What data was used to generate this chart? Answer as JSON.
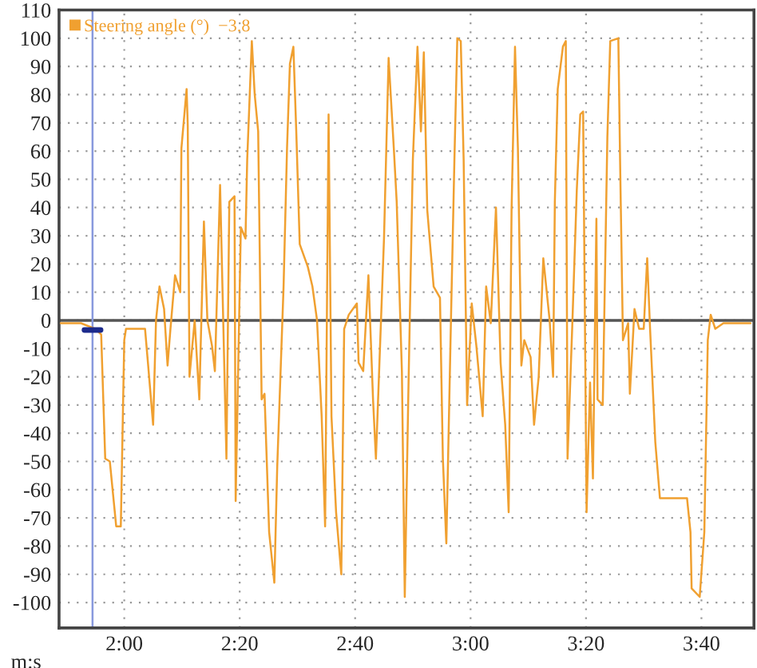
{
  "chart_data": {
    "type": "line",
    "xlabel": "m:s",
    "x": [
      109,
      112.5,
      115,
      116,
      116.7,
      117.5,
      118.6,
      119.4,
      120,
      120.3,
      123.6,
      124.1,
      125,
      125.5,
      126.1,
      126.9,
      127.5,
      128,
      128.8,
      129.7,
      129.9,
      130.8,
      131,
      131.3,
      132.2,
      133,
      133.8,
      134.4,
      135.2,
      135.7,
      136.6,
      137.7,
      138.2,
      139.1,
      139.3,
      140.2,
      141,
      141.3,
      142.1,
      142.6,
      143.2,
      143.8,
      144.3,
      145.1,
      146,
      146.5,
      147.6,
      148.2,
      148.7,
      149.3,
      149.8,
      150.4,
      151.8,
      152.6,
      153.4,
      154.2,
      154.8,
      155.4,
      155.9,
      156.7,
      157.6,
      158.1,
      158.9,
      160.3,
      160.6,
      161.4,
      162.3,
      163.1,
      163.6,
      165,
      165.8,
      166.7,
      167.2,
      168.1,
      168.6,
      169.2,
      170,
      170.8,
      171.4,
      171.9,
      172.5,
      173.6,
      174.7,
      175.2,
      175.8,
      176.6,
      177.2,
      177.7,
      178.3,
      178.8,
      179.4,
      180.2,
      181,
      182.1,
      182.7,
      183.5,
      184.4,
      185.2,
      186,
      186.6,
      187.1,
      187.7,
      188.2,
      188.8,
      189.3,
      190.4,
      191,
      191.8,
      192.6,
      193.7,
      194.3,
      194.6,
      195.1,
      196,
      196.5,
      196.8,
      197.6,
      198.4,
      199,
      199.5,
      200.1,
      200.7,
      201.2,
      201.8,
      202,
      202.9,
      203.7,
      204.2,
      205.6,
      205.9,
      206.4,
      207.3,
      207.6,
      208.4,
      209.2,
      210,
      210.6,
      211.1,
      212,
      212.8,
      217.5,
      218.1,
      218.3,
      219.7,
      220.5,
      221.1,
      221.6,
      222.4,
      223.8,
      228.5
    ],
    "series": [
      {
        "name": "Steering angle (°)  −3.8",
        "color": "#f0a030",
        "values": [
          -1,
          -1,
          -3,
          -5,
          -49,
          -50,
          -73,
          -73,
          -7,
          -3,
          -3,
          -15,
          -37,
          0,
          12,
          4,
          -16,
          -3,
          16,
          10,
          61,
          82,
          69,
          -20,
          0,
          -28,
          35,
          0,
          -9,
          -18,
          48,
          -49,
          42,
          44,
          -64,
          33,
          29,
          57,
          99,
          80,
          67,
          -28,
          -26,
          -75,
          -93,
          -52,
          12,
          61,
          91,
          97,
          67,
          27,
          19,
          12,
          0,
          -34,
          -73,
          73,
          -34,
          -68,
          -90,
          -3,
          2,
          6,
          -15,
          -18,
          16,
          -28,
          -49,
          29,
          93,
          61,
          42,
          -18,
          -98,
          -28,
          57,
          97,
          67,
          95,
          39,
          12,
          8,
          -49,
          -79,
          0,
          57,
          100,
          99,
          57,
          -30,
          6,
          -9,
          -34,
          12,
          -1,
          40,
          -15,
          -37,
          -68,
          39,
          97,
          61,
          -16,
          -7,
          -13,
          -37,
          -20,
          22,
          0,
          -20,
          42,
          82,
          97,
          99,
          -49,
          -3,
          46,
          73,
          74,
          -68,
          -22,
          -56,
          36,
          -28,
          -30,
          65,
          99,
          100,
          57,
          -7,
          -1,
          -26,
          4,
          -3,
          -3,
          22,
          -3,
          -43,
          -63,
          -63,
          -75,
          -95,
          -98,
          -75,
          -7,
          2,
          -3,
          -1,
          -1
        ]
      },
      {
        "color": "#1c2a8c",
        "x": [
          113.1,
          115.9
        ],
        "values": [
          -3.4,
          -3.4
        ]
      }
    ],
    "xlim": [
      108.7,
      229.1
    ],
    "xticks": [
      {
        "value": 120,
        "label": "2:00"
      },
      {
        "value": 140,
        "label": "2:20"
      },
      {
        "value": 160,
        "label": "2:40"
      },
      {
        "value": 180,
        "label": "3:00"
      },
      {
        "value": 200,
        "label": "3:20"
      },
      {
        "value": 220,
        "label": "3:40"
      }
    ],
    "ylim": [
      -109,
      110
    ],
    "yticks": [
      -100,
      -90,
      -80,
      -70,
      -60,
      -50,
      -40,
      -30,
      -20,
      -10,
      0,
      10,
      20,
      30,
      40,
      50,
      60,
      70,
      80,
      90,
      100,
      110
    ],
    "ref_lines": [
      {
        "axis": "y",
        "value": 0,
        "color": "#555555",
        "line_style": "solid"
      },
      {
        "axis": "x",
        "value": 114.5,
        "color": "#8899dd",
        "line_style": "solid"
      }
    ],
    "grid": true,
    "legend": "top left",
    "line_style": "solid"
  }
}
